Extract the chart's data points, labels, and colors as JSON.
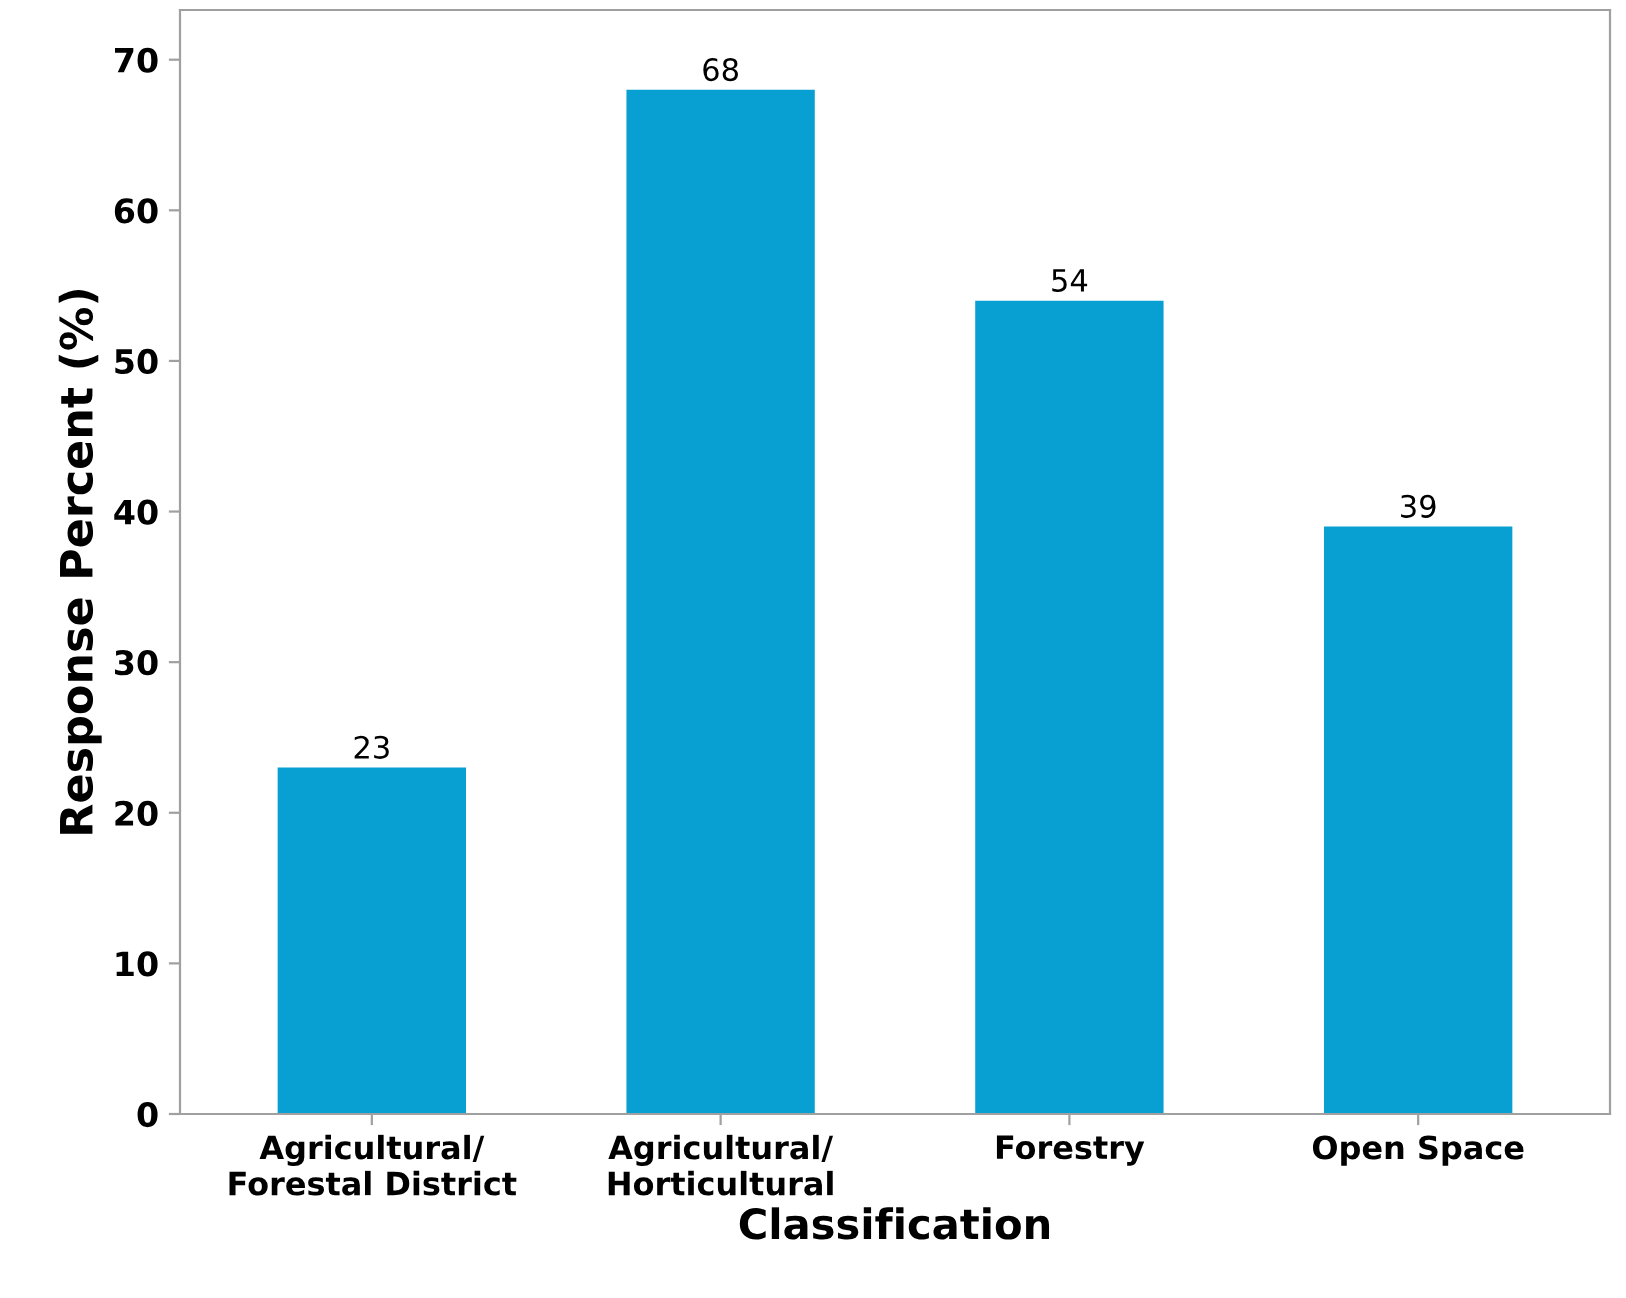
{
  "chart_data": {
    "type": "bar",
    "xlabel": "Classification",
    "ylabel": "Response Percent (%)",
    "categories": [
      "Agricultural/\nForestal District",
      "Agricultural/\nHorticultural",
      "Forestry",
      "Open Space"
    ],
    "values": [
      23,
      68,
      54,
      39
    ],
    "color": "#08a0d2",
    "ylim": [
      0,
      73.3
    ],
    "yticks": [
      0,
      10,
      20,
      30,
      40,
      50,
      60,
      70
    ],
    "grid": false,
    "data_labels": true
  }
}
